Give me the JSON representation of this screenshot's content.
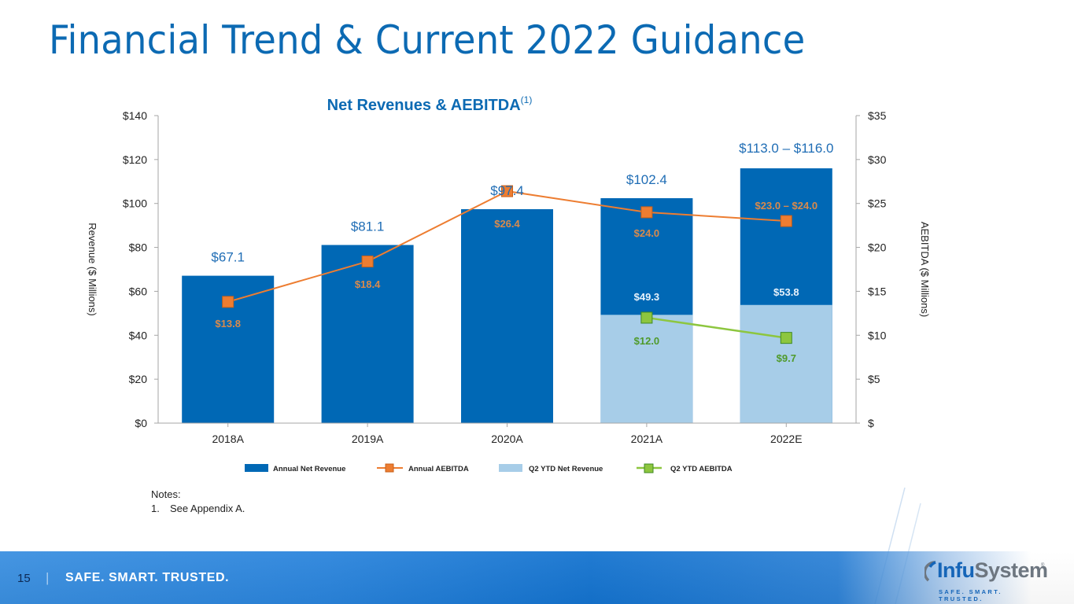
{
  "page": {
    "title": "Financial Trend & Current 2022 Guidance",
    "notes_heading": "Notes:",
    "notes": [
      {
        "num": "1.",
        "text": "See Appendix A."
      }
    ],
    "footer": {
      "page_number": "15",
      "separator": "|",
      "tagline": "SAFE. SMART. TRUSTED."
    },
    "logo": {
      "part1": "Infu",
      "part2": "System",
      "registered": "®",
      "tagline": "SAFE. SMART. TRUSTED.",
      "tm": "™"
    }
  },
  "colors": {
    "title_blue": "#0c6ab3",
    "annual_revenue": "#0068b5",
    "ytd_revenue": "#a7cde8",
    "annual_aebitda": "#ed7d31",
    "ytd_aebitda": "#8dc63f",
    "ytd_aebitda_label": "#4f9a2a",
    "revenue_label": "#1f6db5",
    "aebitda_label": "#d98a4c"
  },
  "chart_data": {
    "type": "bar",
    "title": "Net Revenues & AEBITDA",
    "title_superscript": "(1)",
    "categories": [
      "2018A",
      "2019A",
      "2020A",
      "2021A",
      "2022E"
    ],
    "ylabel": "Revenue ($ Millions)",
    "y2label": "AEBITDA ($ Millions)",
    "ylim": [
      0,
      140
    ],
    "y2lim": [
      0,
      35
    ],
    "yticks": [
      "$0",
      "$20",
      "$40",
      "$60",
      "$80",
      "$100",
      "$120",
      "$140"
    ],
    "y2ticks": [
      "$",
      "$5",
      "$10",
      "$15",
      "$20",
      "$25",
      "$30",
      "$35"
    ],
    "grid": false,
    "legend_position": "bottom",
    "series": [
      {
        "name": "Annual Net Revenue",
        "type": "bar",
        "axis": "left",
        "values": [
          67.1,
          81.1,
          97.4,
          102.4,
          116.0
        ],
        "labels": [
          "$67.1",
          "$81.1",
          "$97.4",
          "$102.4",
          "$113.0 – $116.0"
        ]
      },
      {
        "name": "Annual AEBITDA",
        "type": "line",
        "axis": "right",
        "values": [
          13.8,
          18.4,
          26.4,
          24.0,
          23.0
        ],
        "labels": [
          "$13.8",
          "$18.4",
          "$26.4",
          "$24.0",
          "$23.0 – $24.0"
        ]
      },
      {
        "name": "Q2 YTD Net Revenue",
        "type": "bar",
        "axis": "left",
        "values": [
          null,
          null,
          null,
          49.3,
          53.8
        ],
        "labels": [
          null,
          null,
          null,
          "$49.3",
          "$53.8"
        ]
      },
      {
        "name": "Q2 YTD AEBITDA",
        "type": "line",
        "axis": "right",
        "values": [
          null,
          null,
          null,
          12.0,
          9.7
        ],
        "labels": [
          null,
          null,
          null,
          "$12.0",
          "$9.7"
        ]
      }
    ]
  }
}
